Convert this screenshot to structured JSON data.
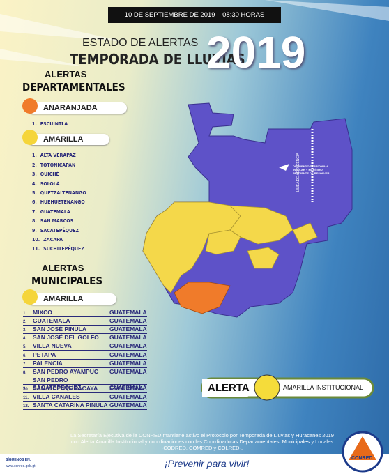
{
  "header": {
    "date": "10 DE SEPTIEMBRE DE 2019",
    "time": "08:30 HORAS"
  },
  "title": {
    "line1": "ESTADO DE ALERTAS",
    "line2": "TEMPORADA DE LLUVIAS",
    "year": "2019"
  },
  "departmental": {
    "heading": [
      "ALERTAS",
      "DEPARTAMENTALES"
    ],
    "groups": [
      {
        "label": "ANARANJADA",
        "items": [
          {
            "n": "1.",
            "name": "ESCUINTLA"
          }
        ]
      },
      {
        "label": "AMARILLA",
        "items": [
          {
            "n": "1.",
            "name": "ALTA VERAPAZ"
          },
          {
            "n": "2.",
            "name": "TOTONICAPÁN"
          },
          {
            "n": "3.",
            "name": "QUICHÉ"
          },
          {
            "n": "4.",
            "name": "SOLOLÁ"
          },
          {
            "n": "5.",
            "name": "QUETZALTENANGO"
          },
          {
            "n": "6.",
            "name": "HUEHUETENANGO"
          },
          {
            "n": "7.",
            "name": "GUATEMALA"
          },
          {
            "n": "8.",
            "name": "SAN MARCOS"
          },
          {
            "n": "9.",
            "name": "SACATEPÉQUEZ"
          },
          {
            "n": "10.",
            "name": "ZACAPA"
          },
          {
            "n": "11.",
            "name": "SUCHITEPÉQUEZ"
          }
        ]
      }
    ]
  },
  "municipal": {
    "heading": [
      "ALERTAS",
      "MUNICIPALES"
    ],
    "label": "AMARILLA",
    "rows": [
      [
        "1.",
        "MIXCO",
        "GUATEMALA"
      ],
      [
        "2.",
        "GUATEMALA",
        "GUATEMALA"
      ],
      [
        "3.",
        "SAN JOSÉ PINULA",
        "GUATEMALA"
      ],
      [
        "4.",
        "SAN JOSÉ DEL GOLFO",
        "GUATEMALA"
      ],
      [
        "5.",
        "VILLA NUEVA",
        "GUATEMALA"
      ],
      [
        "6.",
        "PETAPA",
        "GUATEMALA"
      ],
      [
        "7.",
        "PALENCIA",
        "GUATEMALA"
      ],
      [
        "8.",
        "SAN PEDRO AYAMPUC",
        "GUATEMALA"
      ],
      [
        "9.",
        "SAN PEDRO SACATEPÉQUEZ",
        "GUATEMALA"
      ],
      [
        "10.",
        "SAN VICENTE PACAYA",
        "ESCUINTLA"
      ],
      [
        "11.",
        "VILLA CANALES",
        "GUATEMALA"
      ],
      [
        "12.",
        "SANTA CATARINA PINULA",
        "GUATEMALA"
      ]
    ]
  },
  "map": {
    "note": "DIFERENDO TERRITORIAL INSULAR Y MARÍTIMO PENDIENTE DE RESOLVER",
    "line_label": "LÍNEA DE ADYACENCIA"
  },
  "badge": {
    "alert": "ALERTA",
    "level": "AMARILLA INSTITUCIONAL"
  },
  "footer": {
    "notice": [
      "La Secretaría Ejecutiva de la CONRED mantiene activo el Protocolo por Temporada de Lluvias y Huracanes 2019",
      "con Alerta Amarilla Institucional y coordinaciones con las Coordinadoras Departamentales, Municipales y Locales",
      "-CODRED, COMRED y COLRED-."
    ],
    "follow": "SÍGUENOS EN:",
    "web": "www.conred.gob.gt",
    "slogan": "¡Prevenir para vivir!",
    "logo": "CONRED"
  }
}
